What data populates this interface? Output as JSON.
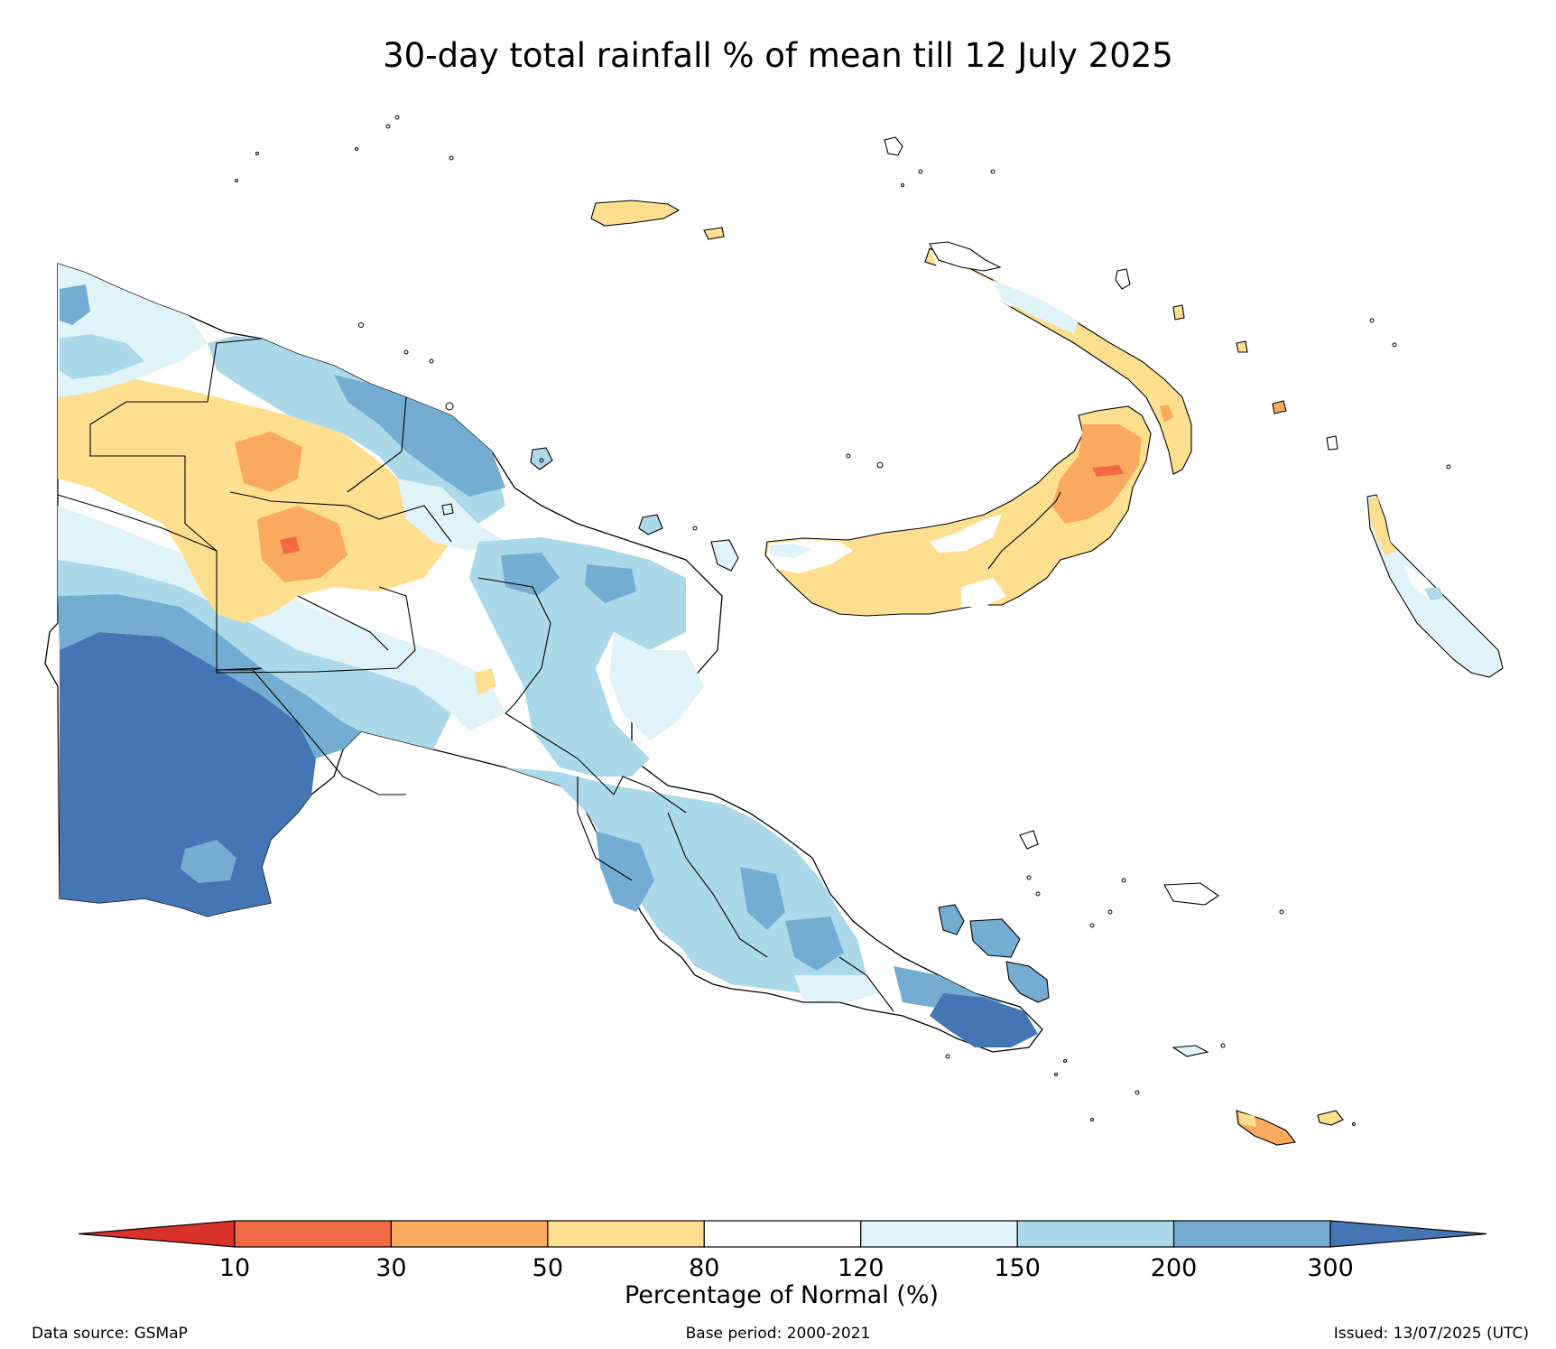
{
  "title": "30-day total rainfall % of mean till 12 July 2025",
  "colorbar": {
    "title": "Percentage of Normal (%)",
    "ticks": [
      "10",
      "30",
      "50",
      "80",
      "120",
      "150",
      "200",
      "300"
    ],
    "colors": [
      "#d7312a",
      "#f06a43",
      "#f9aa5e",
      "#fddf8f",
      "#ffffff",
      "#e0f3f8",
      "#abd9e9",
      "#74add1",
      "#4575b4"
    ]
  },
  "legend_categories": [
    {
      "range": "<10",
      "color": "#d7312a"
    },
    {
      "range": "10-30",
      "color": "#f06a43"
    },
    {
      "range": "30-50",
      "color": "#f9aa5e"
    },
    {
      "range": "50-80",
      "color": "#fddf8f"
    },
    {
      "range": "80-120",
      "color": "#ffffff"
    },
    {
      "range": "120-150",
      "color": "#e0f3f8"
    },
    {
      "range": "150-200",
      "color": "#abd9e9"
    },
    {
      "range": "200-300",
      "color": "#74add1"
    },
    {
      "range": ">300",
      "color": "#4575b4"
    }
  ],
  "footer": {
    "source": "Data source: GSMaP",
    "base_period": "Base period: 2000-2021",
    "issued": "Issued: 13/07/2025 (UTC)"
  }
}
